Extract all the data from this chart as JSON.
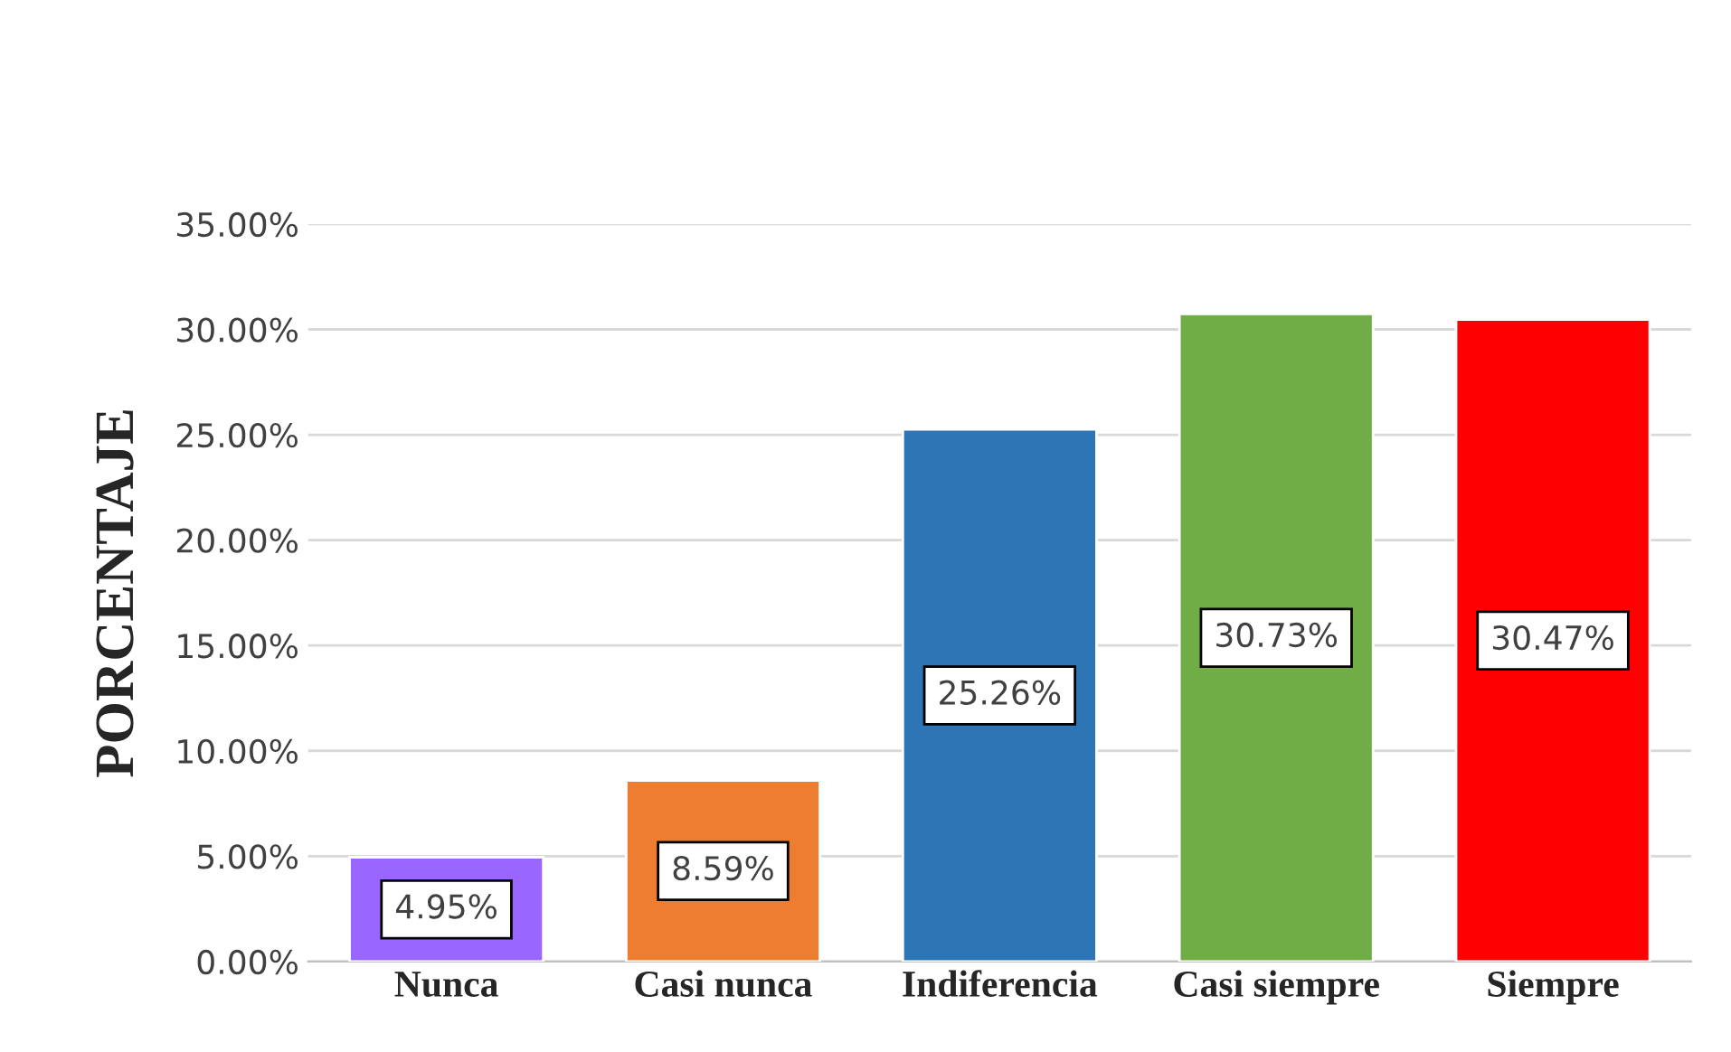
{
  "chart_data": {
    "type": "bar",
    "ylabel": "PORCENTAJE",
    "categories": [
      "Nunca",
      "Casi nunca",
      "Indiferencia",
      "Casi siempre",
      "Siempre"
    ],
    "values": [
      4.95,
      8.59,
      25.26,
      30.73,
      30.47
    ],
    "colors": [
      "#9966ff",
      "#ed7d31",
      "#2e75b6",
      "#70ad47",
      "#ff0000"
    ],
    "value_labels": [
      "4.95%",
      "8.59%",
      "25.26%",
      "30.73%",
      "30.47%"
    ],
    "ylim": [
      0,
      35
    ],
    "yticks": [
      {
        "value": 0,
        "label": "0.00%"
      },
      {
        "value": 5,
        "label": "5.00%"
      },
      {
        "value": 10,
        "label": "10.00%"
      },
      {
        "value": 15,
        "label": "15.00%"
      },
      {
        "value": 20,
        "label": "20.00%"
      },
      {
        "value": 25,
        "label": "25.00%"
      },
      {
        "value": 30,
        "label": "30.00%"
      },
      {
        "value": 35,
        "label": "35.00%"
      }
    ],
    "grid": "y",
    "legend": false
  }
}
